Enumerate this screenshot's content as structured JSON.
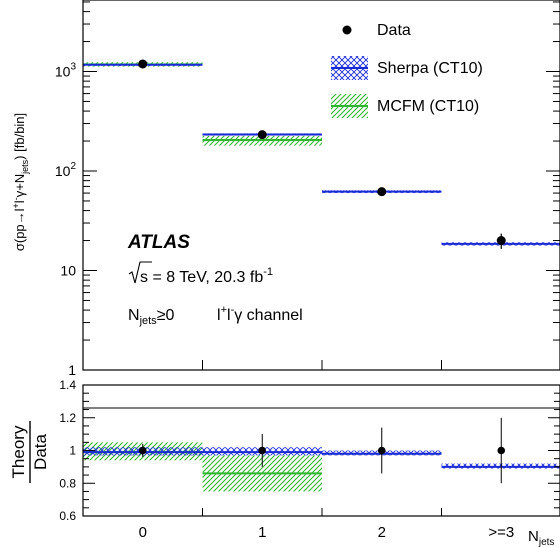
{
  "chart_data": {
    "type": "bar",
    "categories": [
      "0",
      "1",
      "2",
      ">=3"
    ],
    "xlabel_main": "N",
    "xlabel_sub": "jets",
    "main": {
      "ylabel": "σ(pp→l⁺l⁻γ+N_jets) [fb/bin]",
      "yscale": "log",
      "ylim": [
        1,
        5000
      ],
      "yticks": [
        {
          "value": 1,
          "label": "1",
          "sup": ""
        },
        {
          "value": 10,
          "label": "10",
          "sup": ""
        },
        {
          "value": 100,
          "label": "10",
          "sup": "2"
        },
        {
          "value": 1000,
          "label": "10",
          "sup": "3"
        }
      ],
      "data": {
        "name": "Data",
        "values": [
          1190,
          232,
          62,
          20
        ],
        "err_low": [
          30,
          10,
          5,
          3.5
        ],
        "err_high": [
          30,
          10,
          5,
          3.5
        ]
      },
      "sherpa": {
        "name": "Sherpa (CT10)",
        "values": [
          1170,
          233,
          62,
          18.5
        ],
        "band_low": [
          1140,
          227,
          60,
          17.8
        ],
        "band_high": [
          1200,
          239,
          64,
          19.2
        ]
      },
      "mcfm": {
        "name": "MCFM (CT10)",
        "values": [
          1180,
          205,
          0,
          0
        ],
        "band_low": [
          1120,
          180,
          0,
          0
        ],
        "band_high": [
          1240,
          225,
          0,
          0
        ]
      }
    },
    "ratio": {
      "ylabel_top": "Theory",
      "ylabel_bottom": "Data",
      "ylim": [
        0.6,
        1.4
      ],
      "yticks": [
        "0.6",
        "0.8",
        "1",
        "1.2",
        "1.4"
      ],
      "data": {
        "values": [
          1.0,
          1.0,
          1.0,
          1.0
        ],
        "err": [
          0.04,
          0.1,
          0.14,
          0.2
        ]
      },
      "sherpa": {
        "values": [
          0.99,
          0.99,
          0.98,
          0.9
        ],
        "band_low": [
          0.97,
          0.97,
          0.97,
          0.89
        ],
        "band_high": [
          1.02,
          1.02,
          1.0,
          0.92
        ]
      },
      "mcfm": {
        "values": [
          0.99,
          0.86,
          0,
          0
        ],
        "band_low": [
          0.94,
          0.75,
          0,
          0
        ],
        "band_high": [
          1.05,
          0.97,
          0,
          0
        ]
      }
    },
    "legend_position": "top-right",
    "colors": {
      "sherpa": "#1a2ad6",
      "mcfm": "#2fb52f",
      "data": "#000000"
    }
  },
  "annotations": {
    "experiment": "ATLAS",
    "energy_sqrt": "s",
    "energy_text": " = 8 TeV, 20.3 fb",
    "energy_sup": "-1",
    "selection_main": "N",
    "selection_sub": "jets",
    "selection_rest": "≥0",
    "channel_text": "l",
    "channel_sup1": "+",
    "channel_mid": "l",
    "channel_sup2": "-",
    "channel_end": "γ channel"
  },
  "legend": {
    "data": "Data",
    "sherpa": "Sherpa (CT10)",
    "mcfm": "MCFM (CT10)"
  }
}
